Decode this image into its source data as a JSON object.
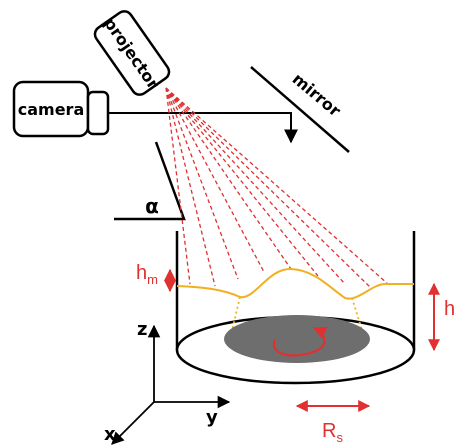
{
  "labels": {
    "projector": "projector",
    "camera": "camera",
    "mirror": "mirror",
    "alpha": "α",
    "h_m": "h",
    "h_m_sub": "m",
    "h": "h",
    "R_s": "R",
    "R_s_sub": "s",
    "axis_x": "x",
    "axis_y": "y",
    "axis_z": "z"
  },
  "colors": {
    "stroke": "#000000",
    "red": "#e03030",
    "orange": "#f0b020",
    "disk_fill": "#6e6e6e"
  }
}
